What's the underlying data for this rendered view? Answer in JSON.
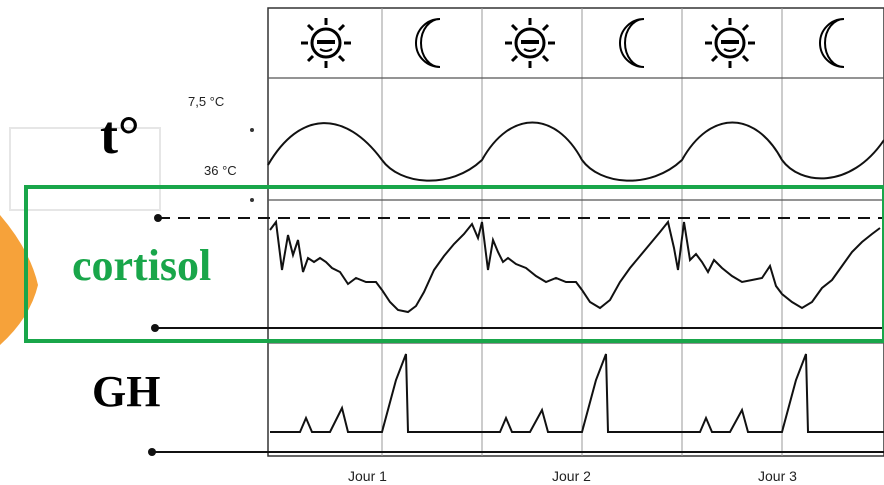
{
  "labels": {
    "temperature": "t°",
    "cortisol": "cortisol",
    "gh": "GH"
  },
  "temperature_ticks": {
    "high": "7,5 °C",
    "low": "36 °C"
  },
  "days": [
    "Jour 1",
    "Jour 2",
    "Jour 3"
  ],
  "cycle_icons": [
    "sun-icon",
    "moon-icon",
    "sun-icon",
    "moon-icon",
    "sun-icon",
    "moon-icon"
  ],
  "colors": {
    "highlight": "#19a64a",
    "cortisol_label": "#19a64a",
    "accent_shape": "#f6a23a",
    "line": "#111111",
    "grid": "#888888"
  }
}
